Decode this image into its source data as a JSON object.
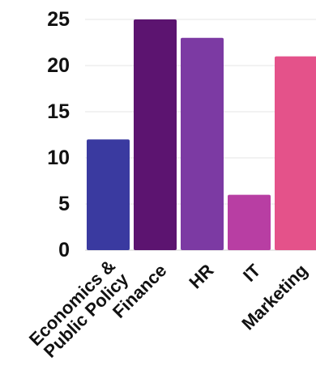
{
  "chart_data": {
    "type": "bar",
    "categories": [
      "Economics & Public Policy",
      "Finance",
      "HR",
      "IT",
      "Marketing"
    ],
    "category_lines": [
      [
        "Economics &",
        "Public Policy"
      ],
      [
        "Finance"
      ],
      [
        "HR"
      ],
      [
        "IT"
      ],
      [
        "Marketing"
      ]
    ],
    "values": [
      12,
      25,
      23,
      6,
      21
    ],
    "colors": [
      "#3a3aa0",
      "#5c1470",
      "#7c3aa3",
      "#b83ea3",
      "#e4528a"
    ],
    "yticks": [
      0,
      5,
      10,
      15,
      20,
      25
    ],
    "ylim": [
      0,
      25
    ],
    "title": "",
    "xlabel": "",
    "ylabel": "",
    "grid": true,
    "legend": "none"
  }
}
